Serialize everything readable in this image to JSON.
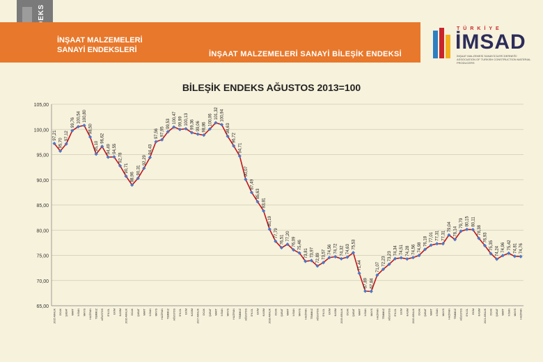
{
  "header": {
    "logo_text": "ENDEKS",
    "brand_line1": "İNŞAAT MALZEMELERİ",
    "brand_line2": "SANAYİ ENDEKSLERİ",
    "subtitle": "İNŞAAT MALZEMELERİ SANAYİ BİLEŞİK ENDEKSİ",
    "org_country": "TÜRKİYE",
    "org_name": "İMSAD",
    "org_desc": "İNŞAAT MALZEMESİ SANAYİCİLERİ DERNEĞİ · ASSOCIATION OF TURKISH CONSTRUCTION MATERIAL PRODUCERS"
  },
  "chart_data": {
    "type": "line",
    "title": "BİLEŞİK ENDEKS AĞUSTOS 2013=100",
    "ylim": [
      65,
      105
    ],
    "yticks": [
      "65,00",
      "70,00",
      "75,00",
      "80,00",
      "85,00",
      "90,00",
      "95,00",
      "100,00",
      "105,00"
    ],
    "categories": [
      "2015 ARALIK",
      "OCAK",
      "ŞUBAT",
      "MART",
      "NİSAN",
      "MAYIS",
      "HAZİRAN",
      "TEMMUZ",
      "AĞUSTOS",
      "EYLÜL",
      "EKİM",
      "KASIM",
      "2016 ARALIK",
      "OCAK",
      "ŞUBAT",
      "MART",
      "NİSAN",
      "MAYIS",
      "HAZİRAN",
      "TEMMUZ",
      "AĞUSTOS",
      "EYLÜL",
      "EKİM",
      "KASIM",
      "2017 ARALIK",
      "OCAK",
      "ŞUBAT",
      "MART",
      "NİSAN",
      "MAYIS",
      "HAZİRAN",
      "TEMMUZ",
      "AĞUSTOS",
      "EYLÜL",
      "EKİM",
      "KASIM",
      "2018 ARALIK",
      "OCAK",
      "ŞUBAT",
      "MART",
      "NİSAN",
      "MAYIS",
      "HAZİRAN",
      "TEMMUZ",
      "AĞUSTOS",
      "EYLÜL",
      "EKİM",
      "KASIM",
      "2019 ARALIK",
      "OCAK",
      "ŞUBAT",
      "MART",
      "NİSAN",
      "MAYIS",
      "HAZİRAN",
      "TEMMUZ",
      "AĞUSTOS",
      "EYLÜL",
      "EKİM",
      "KASIM",
      "2020 ARALIK",
      "OCAK",
      "ŞUBAT",
      "MART",
      "NİSAN",
      "MAYIS",
      "HAZİRAN",
      "TEMMUZ",
      "AĞUSTOS",
      "EYLÜL",
      "EKİM",
      "KASIM",
      "2021 ARALIK",
      "OCAK",
      "ŞUBAT",
      "MART",
      "NİSAN",
      "MAYIS",
      "HAZİRAN"
    ],
    "values": [
      97.21,
      95.7,
      97.12,
      99.76,
      100.54,
      100.8,
      98.5,
      95.1,
      96.62,
      94.49,
      94.55,
      92.78,
      90.71,
      88.96,
      90.31,
      92.29,
      94.43,
      97.56,
      97.95,
      99.53,
      100.47,
      99.99,
      100.13,
      99.36,
      99.06,
      98.86,
      100.06,
      101.32,
      100.94,
      98.63,
      96.72,
      94.71,
      90.07,
      87.49,
      85.63,
      83.81,
      80.19,
      77.79,
      76.51,
      77.2,
      76.09,
      75.46,
      73.81,
      73.97,
      72.89,
      73.57,
      74.56,
      74.72,
      74.32,
      74.63,
      75.53,
      71.44,
      67.89,
      67.84,
      71.07,
      72.23,
      73.23,
      74.34,
      74.51,
      74.28,
      74.56,
      74.98,
      76.18,
      77.01,
      77.31,
      77.31,
      79.04,
      78.14,
      79.79,
      80.15,
      80.11,
      78.38,
      76.93,
      75.35,
      74.24,
      74.96,
      75.42,
      74.81,
      74.76
    ],
    "value_labels": [
      "97,21",
      "95,70",
      "97,12",
      "99,76",
      "100,54",
      "100,80",
      "98,50",
      "95,10",
      "96,62",
      "94,49",
      "94,55",
      "92,78",
      "90,71",
      "88,96",
      "90,31",
      "92,29",
      "94,43",
      "97,56",
      "97,95",
      "99,53",
      "100,47",
      "99,99",
      "100,13",
      "99,36",
      "99,06",
      "98,86",
      "100,06",
      "101,32",
      "100,94",
      "98,63",
      "96,72",
      "94,71",
      "90,07",
      "87,49",
      "85,63",
      "83,81",
      "80,19",
      "77,79",
      "76,51",
      "77,20",
      "76,09",
      "75,46",
      "73,81",
      "73,97",
      "72,89",
      "73,57",
      "74,56",
      "74,72",
      "74,32",
      "74,63",
      "75,53",
      "71,44",
      "67,89",
      "67,84",
      "71,07",
      "72,23",
      "73,23",
      "74,34",
      "74,51",
      "74,28",
      "74,56",
      "74,98",
      "76,18",
      "77,01",
      "77,31",
      "77,31",
      "79,04",
      "78,14",
      "79,79",
      "80,15",
      "80,11",
      "78,38",
      "76,93",
      "75,35",
      "74,24",
      "74,96",
      "75,42",
      "74,81",
      "74,76"
    ],
    "line_color": "#c0141c",
    "marker_color": "#4a78c8",
    "grid": true
  }
}
